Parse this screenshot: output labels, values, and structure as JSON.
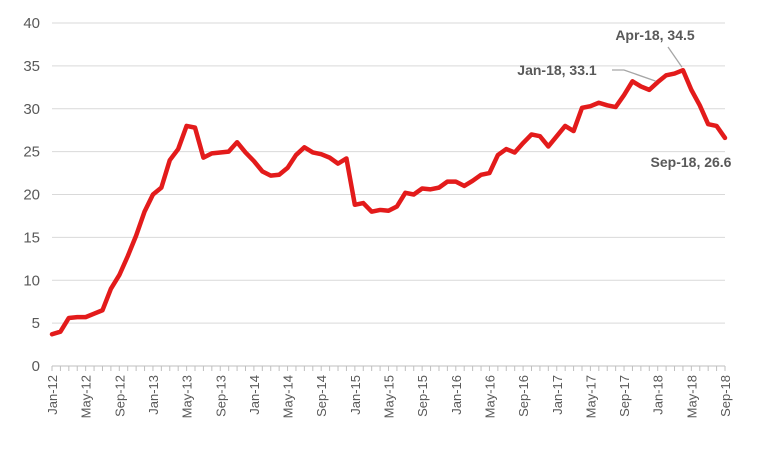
{
  "chart_data": {
    "type": "line",
    "title": "",
    "xlabel": "",
    "ylabel": "",
    "ylim": [
      0,
      40
    ],
    "y_ticks": [
      "0",
      "5",
      "10",
      "15",
      "20",
      "25",
      "30",
      "35",
      "40"
    ],
    "x_tick_labels": [
      "Jan-12",
      "May-12",
      "Sep-12",
      "Jan-13",
      "May-13",
      "Sep-13",
      "Jan-14",
      "May-14",
      "Sep-14",
      "Jan-15",
      "May-15",
      "Sep-15",
      "Jan-16",
      "May-16",
      "Sep-16",
      "Jan-17",
      "May-17",
      "Sep-17",
      "Jan-18",
      "May-18",
      "Sep-18"
    ],
    "grid": "horizontal",
    "legend": "none",
    "color": "#e31b1b",
    "x": [
      "Jan-12",
      "Feb-12",
      "Mar-12",
      "Apr-12",
      "May-12",
      "Jun-12",
      "Jul-12",
      "Aug-12",
      "Sep-12",
      "Oct-12",
      "Nov-12",
      "Dec-12",
      "Jan-13",
      "Feb-13",
      "Mar-13",
      "Apr-13",
      "May-13",
      "Jun-13",
      "Jul-13",
      "Aug-13",
      "Sep-13",
      "Oct-13",
      "Nov-13",
      "Dec-13",
      "Jan-14",
      "Feb-14",
      "Mar-14",
      "Apr-14",
      "May-14",
      "Jun-14",
      "Jul-14",
      "Aug-14",
      "Sep-14",
      "Oct-14",
      "Nov-14",
      "Dec-14",
      "Jan-15",
      "Feb-15",
      "Mar-15",
      "Apr-15",
      "May-15",
      "Jun-15",
      "Jul-15",
      "Aug-15",
      "Sep-15",
      "Oct-15",
      "Nov-15",
      "Dec-15",
      "Jan-16",
      "Feb-16",
      "Mar-16",
      "Apr-16",
      "May-16",
      "Jun-16",
      "Jul-16",
      "Aug-16",
      "Sep-16",
      "Oct-16",
      "Nov-16",
      "Dec-16",
      "Jan-17",
      "Feb-17",
      "Mar-17",
      "Apr-17",
      "May-17",
      "Jun-17",
      "Jul-17",
      "Aug-17",
      "Sep-17",
      "Oct-17",
      "Nov-17",
      "Dec-17",
      "Jan-18",
      "Feb-18",
      "Mar-18",
      "Apr-18",
      "May-18",
      "Jun-18",
      "Jul-18",
      "Aug-18",
      "Sep-18"
    ],
    "series": [
      {
        "values": [
          3.7,
          4.0,
          5.6,
          5.7,
          5.7,
          6.1,
          6.5,
          9.0,
          10.6,
          12.8,
          15.2,
          18.0,
          20.0,
          20.8,
          24.0,
          25.3,
          28.0,
          27.8,
          24.3,
          24.8,
          24.9,
          25.0,
          26.1,
          24.9,
          23.9,
          22.7,
          22.2,
          22.3,
          23.1,
          24.6,
          25.5,
          24.9,
          24.7,
          24.3,
          23.6,
          24.2,
          18.8,
          19.0,
          18.0,
          18.2,
          18.1,
          18.6,
          20.2,
          20.0,
          20.7,
          20.6,
          20.8,
          21.5,
          21.5,
          21.0,
          21.6,
          22.3,
          22.5,
          24.6,
          25.3,
          24.9,
          26.0,
          27.0,
          26.8,
          25.6,
          26.8,
          28.0,
          27.4,
          30.1,
          30.3,
          30.7,
          30.4,
          30.2,
          31.6,
          33.2,
          32.6,
          32.2,
          33.1,
          33.9,
          34.1,
          34.5,
          32.2,
          30.4,
          28.2,
          28.0,
          26.6
        ]
      }
    ],
    "annotations": [
      {
        "label": "Apr-18, 34.5",
        "x": "Apr-18",
        "y": 34.5
      },
      {
        "label": "Jan-18, 33.1",
        "x": "Jan-18",
        "y": 33.1
      },
      {
        "label": "Sep-18, 26.6",
        "x": "Sep-18",
        "y": 26.6
      }
    ]
  }
}
